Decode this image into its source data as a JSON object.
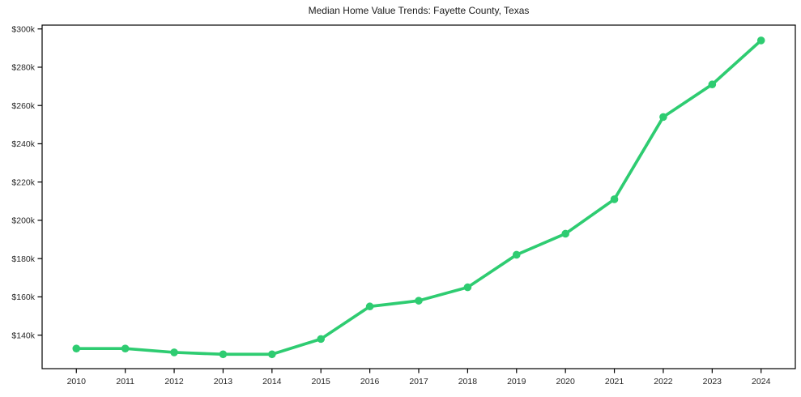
{
  "chart_data": {
    "type": "line",
    "title": "Median Home Value Trends: Fayette County, Texas",
    "x": [
      2010,
      2011,
      2012,
      2013,
      2014,
      2015,
      2016,
      2017,
      2018,
      2019,
      2020,
      2021,
      2022,
      2023,
      2024
    ],
    "xtick_labels": [
      "2010",
      "2011",
      "2012",
      "2013",
      "2014",
      "2015",
      "2016",
      "2017",
      "2018",
      "2019",
      "2020",
      "2021",
      "2022",
      "2023",
      "2024"
    ],
    "series": [
      {
        "name": "Median Home Value",
        "values_usd": [
          133000,
          133000,
          131000,
          130000,
          130000,
          138000,
          155000,
          158000,
          165000,
          182000,
          193000,
          211000,
          254000,
          271000,
          294000
        ],
        "color": "#2ecc71",
        "marker": "circle",
        "line_width": 3.7,
        "marker_radius": 4.8
      }
    ],
    "xlabel": "",
    "ylabel": "",
    "yticks_usd": [
      140000,
      160000,
      180000,
      200000,
      220000,
      240000,
      260000,
      280000,
      300000
    ],
    "ytick_labels": [
      "$140k",
      "$160k",
      "$180k",
      "$200k",
      "$220k",
      "$240k",
      "$260k",
      "$280k",
      "$300k"
    ],
    "ylim_usd": [
      122500,
      302000
    ],
    "xlim": [
      2009.3,
      2024.7
    ],
    "grid": false,
    "legend": "none",
    "background": "#ffffff",
    "spine_color": "#000000",
    "tick_color": "#000000",
    "text_color": "#262626"
  }
}
